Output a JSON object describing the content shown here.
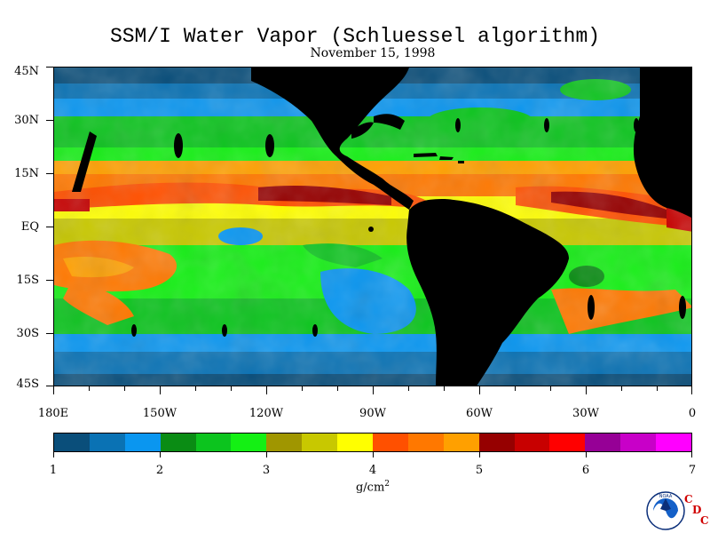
{
  "title": "SSM/I Water Vapor (Schluessel algorithm)",
  "date": "November 15, 1998",
  "map": {
    "latitude_labels": [
      "45N",
      "30N",
      "15N",
      "EQ",
      "15S",
      "30S",
      "45S"
    ],
    "longitude_labels": [
      "180E",
      "150W",
      "120W",
      "90W",
      "60W",
      "30W",
      "0"
    ],
    "land_color": "#000000",
    "missing_swath_color": "#000000"
  },
  "colorbar": {
    "tick_labels": [
      "1",
      "2",
      "3",
      "4",
      "5",
      "6",
      "7"
    ],
    "units_base": "g/cm",
    "units_exp": "2",
    "range": [
      1,
      7
    ],
    "colors": [
      "#0a4e7a",
      "#0a72b4",
      "#0a96f0",
      "#0a8c14",
      "#0cc41e",
      "#14f014",
      "#a09600",
      "#c8c800",
      "#ffff00",
      "#ff5000",
      "#ff7800",
      "#ffa000",
      "#960000",
      "#c80000",
      "#ff0000",
      "#960096",
      "#c800c8",
      "#ff00ff"
    ]
  },
  "logo": {
    "ring_text": "NOAA",
    "letters": [
      "C",
      "D",
      "C"
    ]
  }
}
